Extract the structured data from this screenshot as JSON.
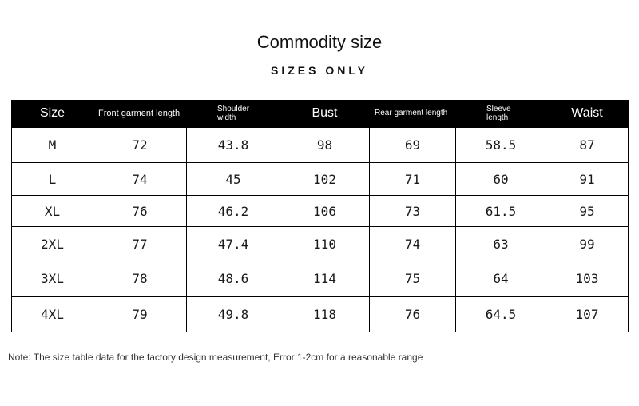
{
  "title": "Commodity size",
  "subtitle": "SIZES ONLY",
  "table": {
    "headers": [
      {
        "line1": "Size",
        "line2": ""
      },
      {
        "line1": "Front garment length",
        "line2": ""
      },
      {
        "line1": "Shoulder",
        "line2": "width"
      },
      {
        "line1": "Bust",
        "line2": ""
      },
      {
        "line1": "Rear garment length",
        "line2": ""
      },
      {
        "line1": "Sleeve",
        "line2": "length"
      },
      {
        "line1": "Waist",
        "line2": ""
      }
    ],
    "rows": [
      [
        "M",
        "72",
        "43.8",
        "98",
        "69",
        "58.5",
        "87"
      ],
      [
        "L",
        "74",
        "45",
        "102",
        "71",
        "60",
        "91"
      ],
      [
        "XL",
        "76",
        "46.2",
        "106",
        "73",
        "61.5",
        "95"
      ],
      [
        "2XL",
        "77",
        "47.4",
        "110",
        "74",
        "63",
        "99"
      ],
      [
        "3XL",
        "78",
        "48.6",
        "114",
        "75",
        "64",
        "103"
      ],
      [
        "4XL",
        "79",
        "49.8",
        "118",
        "76",
        "64.5",
        "107"
      ]
    ]
  },
  "note": "Note: The size table data for the factory design measurement, Error 1-2cm for a reasonable range"
}
